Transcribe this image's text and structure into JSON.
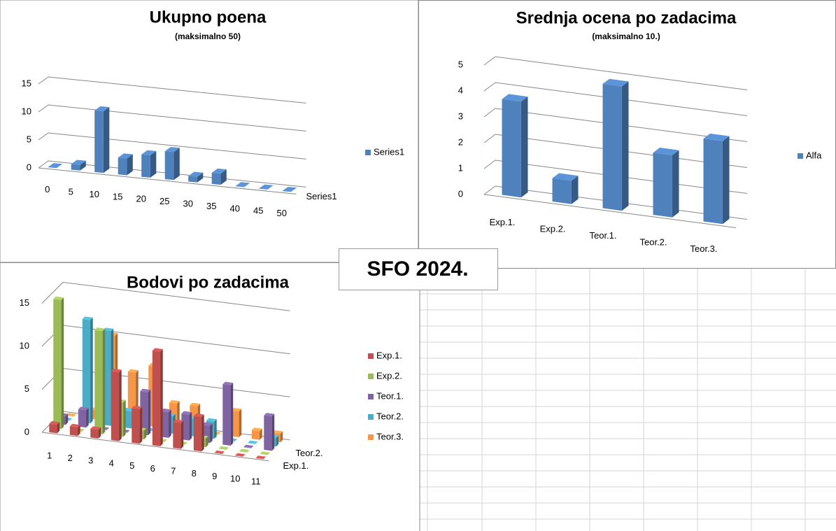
{
  "label": "SFO 2024.",
  "chart_data": [
    {
      "type": "bar3d",
      "title": "Ukupno poena",
      "subtitle": "(maksimalno 50)",
      "categories": [
        "0",
        "5",
        "10",
        "15",
        "20",
        "25",
        "30",
        "35",
        "40",
        "45",
        "50"
      ],
      "series": [
        {
          "name": "Series1",
          "color": "#4f81bd",
          "values": [
            0,
            1,
            11,
            3,
            4,
            5,
            1,
            2,
            0,
            0,
            0
          ]
        }
      ],
      "ylim": [
        0,
        15
      ],
      "yticks": [
        0,
        5,
        10,
        15
      ]
    },
    {
      "type": "bar3d",
      "title": "Srednja ocena po zadacima",
      "subtitle": "(maksimalno 10.)",
      "categories": [
        "Exp.1.",
        "Exp.2.",
        "Teor.1.",
        "Teor.2.",
        "Teor.3."
      ],
      "series": [
        {
          "name": "Alfa",
          "color": "#4f81bd",
          "values": [
            3.7,
            0.9,
            4.8,
            2.4,
            3.2
          ]
        }
      ],
      "ylim": [
        0,
        5
      ],
      "yticks": [
        0,
        1,
        2,
        3,
        4,
        5
      ]
    },
    {
      "type": "bar3d",
      "title": "Bodovi po zadacima",
      "categories": [
        "1",
        "2",
        "3",
        "4",
        "5",
        "6",
        "7",
        "8",
        "9",
        "10",
        "11"
      ],
      "series": [
        {
          "name": "Exp.1.",
          "color": "#c0504d",
          "values": [
            1,
            1,
            1,
            8,
            4,
            11,
            3,
            4,
            0,
            0,
            0
          ]
        },
        {
          "name": "Exp.2.",
          "color": "#9bbb59",
          "values": [
            15,
            0,
            12,
            4,
            1,
            0,
            0,
            1,
            0,
            0,
            0
          ]
        },
        {
          "name": "Teor.1.",
          "color": "#8064a2",
          "values": [
            1,
            2,
            0,
            0,
            5,
            3,
            3,
            2,
            7,
            0,
            4
          ]
        },
        {
          "name": "Teor.2.",
          "color": "#4bacc6",
          "values": [
            0,
            12,
            11,
            2,
            0,
            2,
            2,
            2,
            0,
            0,
            1
          ]
        },
        {
          "name": "Teor.3.",
          "color": "#f79646",
          "values": [
            0,
            1,
            10,
            6,
            7,
            3,
            3,
            0,
            3,
            1,
            1
          ]
        }
      ],
      "ylim": [
        0,
        15
      ],
      "yticks": [
        0,
        5,
        10,
        15
      ]
    }
  ]
}
